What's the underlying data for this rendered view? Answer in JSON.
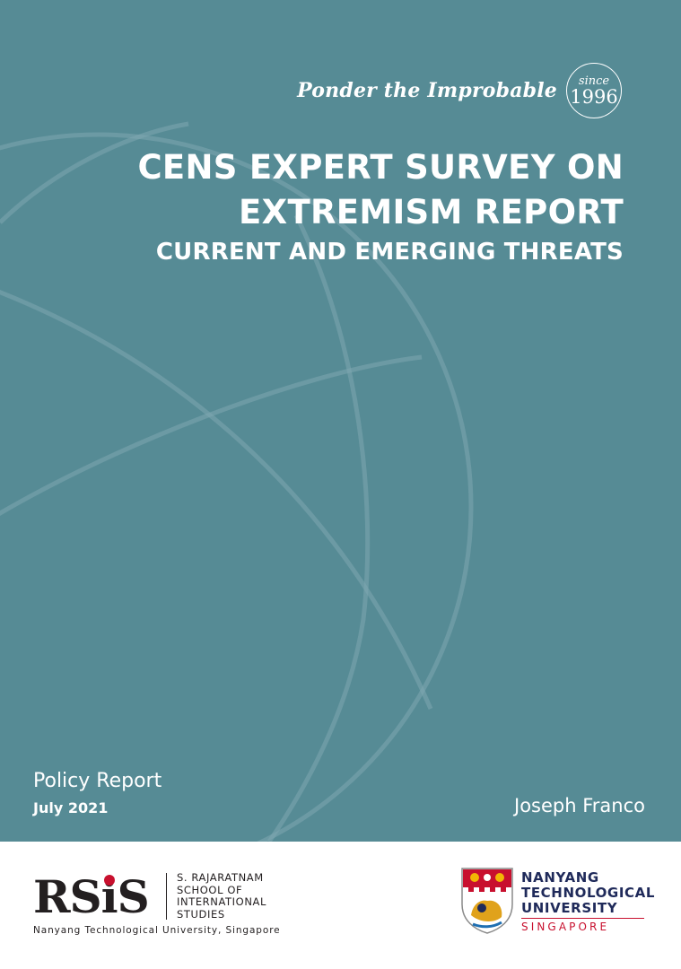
{
  "cover": {
    "background_color": "#568b95",
    "tagline": "Ponder the Improbable",
    "badge": {
      "since": "since",
      "year": "1996"
    },
    "title_lines": [
      "CENS EXPERT SURVEY ON",
      "EXTREMISM REPORT"
    ],
    "subtitle": "CURRENT AND EMERGING THREATS",
    "report_type": "Policy Report",
    "date": "July 2021",
    "author": "Joseph Franco"
  },
  "footer": {
    "rsis": {
      "mark_prefix": "RS",
      "mark_i": "i",
      "mark_suffix": "S",
      "school_lines": [
        "S. RAJARATNAM",
        "SCHOOL OF",
        "INTERNATIONAL",
        "STUDIES"
      ],
      "sub": "Nanyang Technological University, Singapore"
    },
    "ntu": {
      "name_lines": [
        "NANYANG",
        "TECHNOLOGICAL",
        "UNIVERSITY"
      ],
      "country": "SINGAPORE",
      "crest_icon": "ntu-crest-icon",
      "brand_red": "#c8102e",
      "brand_navy": "#1f2a5a"
    }
  }
}
